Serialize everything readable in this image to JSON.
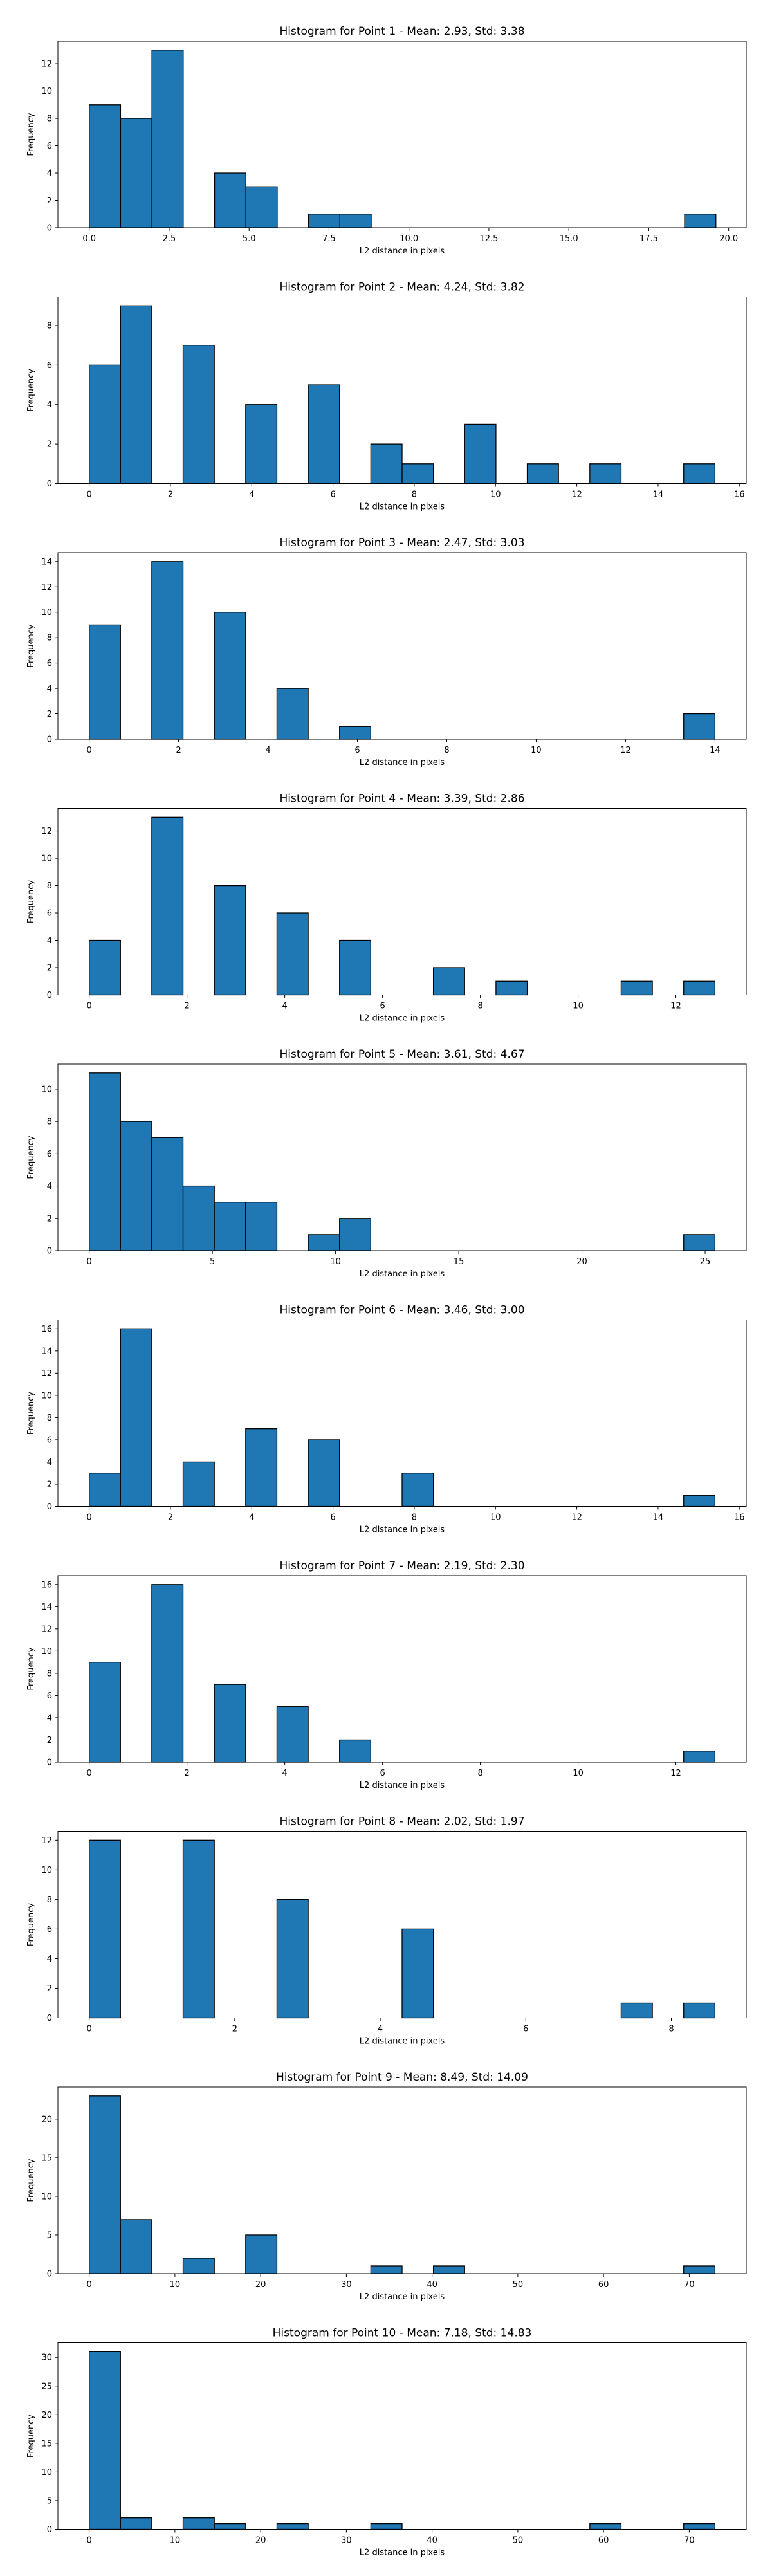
{
  "chart_data": [
    {
      "type": "bar",
      "title": "Histogram for Point 1 - Mean: 2.93, Std: 3.38",
      "xlabel": "L2 distance in pixels",
      "ylabel": "Frequency",
      "bar_color": "#1f77b4",
      "xlim": [
        -0.98,
        20.55
      ],
      "ylim": [
        0,
        13.65
      ],
      "xticks": [
        0.0,
        2.5,
        5.0,
        7.5,
        10.0,
        12.5,
        15.0,
        17.5,
        20.0
      ],
      "xtick_labels": [
        "0.0",
        "2.5",
        "5.0",
        "7.5",
        "10.0",
        "12.5",
        "15.0",
        "17.5",
        "20.0"
      ],
      "yticks": [
        0,
        2,
        4,
        6,
        8,
        10,
        12
      ],
      "bin_width": 0.98,
      "bins": [
        {
          "x0": 0.0,
          "count": 9
        },
        {
          "x0": 0.98,
          "count": 8
        },
        {
          "x0": 1.96,
          "count": 13
        },
        {
          "x0": 3.92,
          "count": 4
        },
        {
          "x0": 4.9,
          "count": 3
        },
        {
          "x0": 6.86,
          "count": 1
        },
        {
          "x0": 7.84,
          "count": 1
        },
        {
          "x0": 18.62,
          "count": 1
        }
      ]
    },
    {
      "type": "bar",
      "title": "Histogram for Point 2 - Mean: 4.24, Std: 3.82",
      "xlabel": "L2 distance in pixels",
      "ylabel": "Frequency",
      "bar_color": "#1f77b4",
      "xlim": [
        -0.77,
        16.17
      ],
      "ylim": [
        0,
        9.45
      ],
      "xticks": [
        0,
        2,
        4,
        6,
        8,
        10,
        12,
        14,
        16
      ],
      "xtick_labels": [
        "0",
        "2",
        "4",
        "6",
        "8",
        "10",
        "12",
        "14",
        "16"
      ],
      "yticks": [
        0,
        2,
        4,
        6,
        8
      ],
      "bin_width": 0.77,
      "bins": [
        {
          "x0": 0.0,
          "count": 6
        },
        {
          "x0": 0.77,
          "count": 9
        },
        {
          "x0": 2.31,
          "count": 7
        },
        {
          "x0": 3.85,
          "count": 4
        },
        {
          "x0": 5.39,
          "count": 5
        },
        {
          "x0": 6.93,
          "count": 2
        },
        {
          "x0": 7.7,
          "count": 1
        },
        {
          "x0": 9.24,
          "count": 3
        },
        {
          "x0": 10.78,
          "count": 1
        },
        {
          "x0": 12.32,
          "count": 1
        },
        {
          "x0": 14.63,
          "count": 1
        }
      ]
    },
    {
      "type": "bar",
      "title": "Histogram for Point 3 - Mean: 2.47, Std: 3.03",
      "xlabel": "L2 distance in pixels",
      "ylabel": "Frequency",
      "bar_color": "#1f77b4",
      "xlim": [
        -0.7,
        14.7
      ],
      "ylim": [
        0,
        14.7
      ],
      "xticks": [
        0,
        2,
        4,
        6,
        8,
        10,
        12,
        14
      ],
      "xtick_labels": [
        "0",
        "2",
        "4",
        "6",
        "8",
        "10",
        "12",
        "14"
      ],
      "yticks": [
        0,
        2,
        4,
        6,
        8,
        10,
        12,
        14
      ],
      "bin_width": 0.7,
      "bins": [
        {
          "x0": 0.0,
          "count": 9
        },
        {
          "x0": 1.4,
          "count": 14
        },
        {
          "x0": 2.8,
          "count": 10
        },
        {
          "x0": 4.2,
          "count": 4
        },
        {
          "x0": 5.6,
          "count": 1
        },
        {
          "x0": 13.3,
          "count": 2
        }
      ]
    },
    {
      "type": "bar",
      "title": "Histogram for Point 4 - Mean: 3.39, Std: 2.86",
      "xlabel": "L2 distance in pixels",
      "ylabel": "Frequency",
      "bar_color": "#1f77b4",
      "xlim": [
        -0.64,
        13.44
      ],
      "ylim": [
        0,
        13.65
      ],
      "xticks": [
        0,
        2,
        4,
        6,
        8,
        10,
        12
      ],
      "xtick_labels": [
        "0",
        "2",
        "4",
        "6",
        "8",
        "10",
        "12"
      ],
      "yticks": [
        0,
        2,
        4,
        6,
        8,
        10,
        12
      ],
      "bin_width": 0.64,
      "bins": [
        {
          "x0": 0.0,
          "count": 4
        },
        {
          "x0": 1.28,
          "count": 13
        },
        {
          "x0": 2.56,
          "count": 8
        },
        {
          "x0": 3.84,
          "count": 6
        },
        {
          "x0": 5.12,
          "count": 4
        },
        {
          "x0": 7.04,
          "count": 2
        },
        {
          "x0": 8.32,
          "count": 1
        },
        {
          "x0": 10.88,
          "count": 1
        },
        {
          "x0": 12.16,
          "count": 1
        }
      ]
    },
    {
      "type": "bar",
      "title": "Histogram for Point 5 - Mean: 3.61, Std: 4.67",
      "xlabel": "L2 distance in pixels",
      "ylabel": "Frequency",
      "bar_color": "#1f77b4",
      "xlim": [
        -1.27,
        26.67
      ],
      "ylim": [
        0,
        11.55
      ],
      "xticks": [
        0,
        5,
        10,
        15,
        20,
        25
      ],
      "xtick_labels": [
        "0",
        "5",
        "10",
        "15",
        "20",
        "25"
      ],
      "yticks": [
        0,
        2,
        4,
        6,
        8,
        10
      ],
      "bin_width": 1.27,
      "bins": [
        {
          "x0": 0.0,
          "count": 11
        },
        {
          "x0": 1.27,
          "count": 8
        },
        {
          "x0": 2.54,
          "count": 7
        },
        {
          "x0": 3.81,
          "count": 4
        },
        {
          "x0": 5.08,
          "count": 3
        },
        {
          "x0": 6.35,
          "count": 3
        },
        {
          "x0": 8.89,
          "count": 1
        },
        {
          "x0": 10.16,
          "count": 2
        },
        {
          "x0": 24.13,
          "count": 1
        }
      ]
    },
    {
      "type": "bar",
      "title": "Histogram for Point 6 - Mean: 3.46, Std: 3.00",
      "xlabel": "L2 distance in pixels",
      "ylabel": "Frequency",
      "bar_color": "#1f77b4",
      "xlim": [
        -0.77,
        16.17
      ],
      "ylim": [
        0,
        16.8
      ],
      "xticks": [
        0,
        2,
        4,
        6,
        8,
        10,
        12,
        14,
        16
      ],
      "xtick_labels": [
        "0",
        "2",
        "4",
        "6",
        "8",
        "10",
        "12",
        "14",
        "16"
      ],
      "yticks": [
        0,
        2,
        4,
        6,
        8,
        10,
        12,
        14,
        16
      ],
      "bin_width": 0.77,
      "bins": [
        {
          "x0": 0.0,
          "count": 3
        },
        {
          "x0": 0.77,
          "count": 16
        },
        {
          "x0": 2.31,
          "count": 4
        },
        {
          "x0": 3.85,
          "count": 7
        },
        {
          "x0": 5.39,
          "count": 6
        },
        {
          "x0": 7.7,
          "count": 3
        },
        {
          "x0": 14.63,
          "count": 1
        }
      ]
    },
    {
      "type": "bar",
      "title": "Histogram for Point 7 - Mean: 2.19, Std: 2.30",
      "xlabel": "L2 distance in pixels",
      "ylabel": "Frequency",
      "bar_color": "#1f77b4",
      "xlim": [
        -0.64,
        13.44
      ],
      "ylim": [
        0,
        16.8
      ],
      "xticks": [
        0,
        2,
        4,
        6,
        8,
        10,
        12
      ],
      "xtick_labels": [
        "0",
        "2",
        "4",
        "6",
        "8",
        "10",
        "12"
      ],
      "yticks": [
        0,
        2,
        4,
        6,
        8,
        10,
        12,
        14,
        16
      ],
      "bin_width": 0.64,
      "bins": [
        {
          "x0": 0.0,
          "count": 9
        },
        {
          "x0": 1.28,
          "count": 16
        },
        {
          "x0": 2.56,
          "count": 7
        },
        {
          "x0": 3.84,
          "count": 5
        },
        {
          "x0": 5.12,
          "count": 2
        },
        {
          "x0": 12.16,
          "count": 1
        }
      ]
    },
    {
      "type": "bar",
      "title": "Histogram for Point 8 - Mean: 2.02, Std: 1.97",
      "xlabel": "L2 distance in pixels",
      "ylabel": "Frequency",
      "bar_color": "#1f77b4",
      "xlim": [
        -0.43,
        9.03
      ],
      "ylim": [
        0,
        12.6
      ],
      "xticks": [
        0,
        2,
        4,
        6,
        8
      ],
      "xtick_labels": [
        "0",
        "2",
        "4",
        "6",
        "8"
      ],
      "yticks": [
        0,
        2,
        4,
        6,
        8,
        10,
        12
      ],
      "bin_width": 0.43,
      "bins": [
        {
          "x0": 0.0,
          "count": 12
        },
        {
          "x0": 1.29,
          "count": 12
        },
        {
          "x0": 2.58,
          "count": 8
        },
        {
          "x0": 4.3,
          "count": 6
        },
        {
          "x0": 7.31,
          "count": 1
        },
        {
          "x0": 8.17,
          "count": 1
        }
      ]
    },
    {
      "type": "bar",
      "title": "Histogram for Point 9 - Mean: 8.49, Std: 14.09",
      "xlabel": "L2 distance in pixels",
      "ylabel": "Frequency",
      "bar_color": "#1f77b4",
      "xlim": [
        -3.65,
        76.65
      ],
      "ylim": [
        0,
        24.15
      ],
      "xticks": [
        0,
        10,
        20,
        30,
        40,
        50,
        60,
        70
      ],
      "xtick_labels": [
        "0",
        "10",
        "20",
        "30",
        "40",
        "50",
        "60",
        "70"
      ],
      "yticks": [
        0,
        5,
        10,
        15,
        20
      ],
      "bin_width": 3.65,
      "bins": [
        {
          "x0": 0.0,
          "count": 23
        },
        {
          "x0": 3.65,
          "count": 7
        },
        {
          "x0": 10.95,
          "count": 2
        },
        {
          "x0": 18.25,
          "count": 5
        },
        {
          "x0": 32.85,
          "count": 1
        },
        {
          "x0": 40.15,
          "count": 1
        },
        {
          "x0": 69.35,
          "count": 1
        }
      ]
    },
    {
      "type": "bar",
      "title": "Histogram for Point 10 - Mean: 7.18, Std: 14.83",
      "xlabel": "L2 distance in pixels",
      "ylabel": "Frequency",
      "bar_color": "#1f77b4",
      "xlim": [
        -3.65,
        76.65
      ],
      "ylim": [
        0,
        32.55
      ],
      "xticks": [
        0,
        10,
        20,
        30,
        40,
        50,
        60,
        70
      ],
      "xtick_labels": [
        "0",
        "10",
        "20",
        "30",
        "40",
        "50",
        "60",
        "70"
      ],
      "yticks": [
        0,
        5,
        10,
        15,
        20,
        25,
        30
      ],
      "bin_width": 3.65,
      "bins": [
        {
          "x0": 0.0,
          "count": 31
        },
        {
          "x0": 3.65,
          "count": 2
        },
        {
          "x0": 10.95,
          "count": 2
        },
        {
          "x0": 14.6,
          "count": 1
        },
        {
          "x0": 21.9,
          "count": 1
        },
        {
          "x0": 32.85,
          "count": 1
        },
        {
          "x0": 58.4,
          "count": 1
        },
        {
          "x0": 69.35,
          "count": 1
        }
      ]
    }
  ]
}
